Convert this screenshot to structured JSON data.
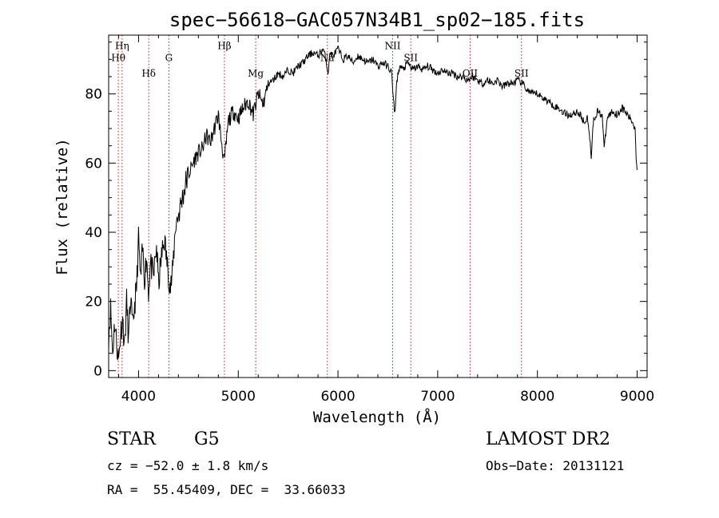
{
  "chart_data": {
    "type": "line",
    "title": "spec−56618−GAC057N34B1_sp02−185.fits",
    "xlabel": "Wavelength (Å)",
    "ylabel": "Flux (relative)",
    "xlim": [
      3700,
      9100
    ],
    "ylim": [
      -2,
      97
    ],
    "xticks": [
      4000,
      5000,
      6000,
      7000,
      8000,
      9000
    ],
    "yticks": [
      0,
      20,
      40,
      60,
      80
    ],
    "grid": false,
    "line_color": "#000000",
    "marker_color": "#b22222",
    "spectrum_anchors": [
      [
        3700,
        10
      ],
      [
        3720,
        18
      ],
      [
        3740,
        5
      ],
      [
        3760,
        14
      ],
      [
        3780,
        8
      ],
      [
        3800,
        3
      ],
      [
        3820,
        11
      ],
      [
        3840,
        15
      ],
      [
        3860,
        7
      ],
      [
        3880,
        20
      ],
      [
        3900,
        9
      ],
      [
        3920,
        21
      ],
      [
        3940,
        12
      ],
      [
        3960,
        19
      ],
      [
        3980,
        24
      ],
      [
        4000,
        38
      ],
      [
        4020,
        26
      ],
      [
        4040,
        35
      ],
      [
        4060,
        27
      ],
      [
        4080,
        33
      ],
      [
        4100,
        23
      ],
      [
        4120,
        31
      ],
      [
        4150,
        27
      ],
      [
        4180,
        36
      ],
      [
        4200,
        25
      ],
      [
        4230,
        33
      ],
      [
        4260,
        38
      ],
      [
        4290,
        30
      ],
      [
        4320,
        24
      ],
      [
        4340,
        28
      ],
      [
        4370,
        42
      ],
      [
        4400,
        45
      ],
      [
        4440,
        50
      ],
      [
        4480,
        55
      ],
      [
        4520,
        58
      ],
      [
        4560,
        61
      ],
      [
        4600,
        63
      ],
      [
        4640,
        64
      ],
      [
        4680,
        68
      ],
      [
        4720,
        66
      ],
      [
        4760,
        70
      ],
      [
        4800,
        74
      ],
      [
        4820,
        69
      ],
      [
        4860,
        60
      ],
      [
        4900,
        72
      ],
      [
        4950,
        75
      ],
      [
        5000,
        73
      ],
      [
        5050,
        76
      ],
      [
        5100,
        78
      ],
      [
        5150,
        74
      ],
      [
        5200,
        80
      ],
      [
        5250,
        77
      ],
      [
        5300,
        83
      ],
      [
        5350,
        84
      ],
      [
        5400,
        86
      ],
      [
        5450,
        85
      ],
      [
        5500,
        87
      ],
      [
        5550,
        86
      ],
      [
        5600,
        88
      ],
      [
        5650,
        89
      ],
      [
        5700,
        91
      ],
      [
        5750,
        92
      ],
      [
        5800,
        91
      ],
      [
        5850,
        93
      ],
      [
        5880,
        90
      ],
      [
        5900,
        86
      ],
      [
        5920,
        92
      ],
      [
        5950,
        91
      ],
      [
        6000,
        93
      ],
      [
        6050,
        90
      ],
      [
        6100,
        91
      ],
      [
        6150,
        89
      ],
      [
        6200,
        91
      ],
      [
        6250,
        90
      ],
      [
        6300,
        89
      ],
      [
        6350,
        90
      ],
      [
        6400,
        88
      ],
      [
        6450,
        89
      ],
      [
        6500,
        88
      ],
      [
        6540,
        86
      ],
      [
        6550,
        80
      ],
      [
        6570,
        74
      ],
      [
        6590,
        84
      ],
      [
        6620,
        88
      ],
      [
        6650,
        87
      ],
      [
        6700,
        89
      ],
      [
        6750,
        87
      ],
      [
        6800,
        88
      ],
      [
        6850,
        87
      ],
      [
        6900,
        88
      ],
      [
        6950,
        87
      ],
      [
        7000,
        86
      ],
      [
        7050,
        87
      ],
      [
        7100,
        86
      ],
      [
        7150,
        86
      ],
      [
        7200,
        85
      ],
      [
        7250,
        85
      ],
      [
        7300,
        84
      ],
      [
        7350,
        85
      ],
      [
        7400,
        84
      ],
      [
        7450,
        83
      ],
      [
        7500,
        84
      ],
      [
        7550,
        83
      ],
      [
        7600,
        84
      ],
      [
        7650,
        82
      ],
      [
        7700,
        83
      ],
      [
        7750,
        83
      ],
      [
        7800,
        84
      ],
      [
        7850,
        83
      ],
      [
        7900,
        81
      ],
      [
        7950,
        80
      ],
      [
        8000,
        80
      ],
      [
        8050,
        79
      ],
      [
        8100,
        78
      ],
      [
        8150,
        77
      ],
      [
        8200,
        76
      ],
      [
        8250,
        75
      ],
      [
        8300,
        74
      ],
      [
        8350,
        74
      ],
      [
        8400,
        75
      ],
      [
        8450,
        73
      ],
      [
        8480,
        71
      ],
      [
        8500,
        74
      ],
      [
        8520,
        69
      ],
      [
        8540,
        62
      ],
      [
        8560,
        72
      ],
      [
        8600,
        75
      ],
      [
        8650,
        74
      ],
      [
        8670,
        64
      ],
      [
        8700,
        73
      ],
      [
        8750,
        75
      ],
      [
        8800,
        74
      ],
      [
        8850,
        76
      ],
      [
        8900,
        74
      ],
      [
        8950,
        72
      ],
      [
        8980,
        70
      ],
      [
        8990,
        62
      ],
      [
        9000,
        58
      ]
    ],
    "lines": [
      {
        "label": "Hη",
        "x": 3835,
        "label_y": 93
      },
      {
        "label": "Hθ",
        "x": 3797,
        "label_y": 89.5
      },
      {
        "label": "Hδ",
        "x": 4102,
        "label_y": 85
      },
      {
        "label": "G",
        "x": 4304,
        "label_y": 89.5
      },
      {
        "label": "Hβ",
        "x": 4861,
        "label_y": 93
      },
      {
        "label": "Mg",
        "x": 5175,
        "label_y": 85
      },
      {
        "label": "Na",
        "x": 5893,
        "label_y": 89.5
      },
      {
        "label": "NII",
        "x": 6548,
        "label_y": 93
      },
      {
        "label": "SII",
        "x": 6730,
        "label_y": 89.5
      },
      {
        "label": "OII",
        "x": 7325,
        "label_y": 85
      },
      {
        "label": "SII",
        "x": 7840,
        "label_y": 85
      }
    ]
  },
  "info": {
    "object_class": "STAR",
    "subclass": "G5",
    "survey": "LAMOST DR2",
    "redshift": "cz = −52.0 ± 1.8 km/s",
    "obs_date": "Obs−Date: 20131121",
    "coords": "RA =  55.45409, DEC =  33.66033"
  }
}
